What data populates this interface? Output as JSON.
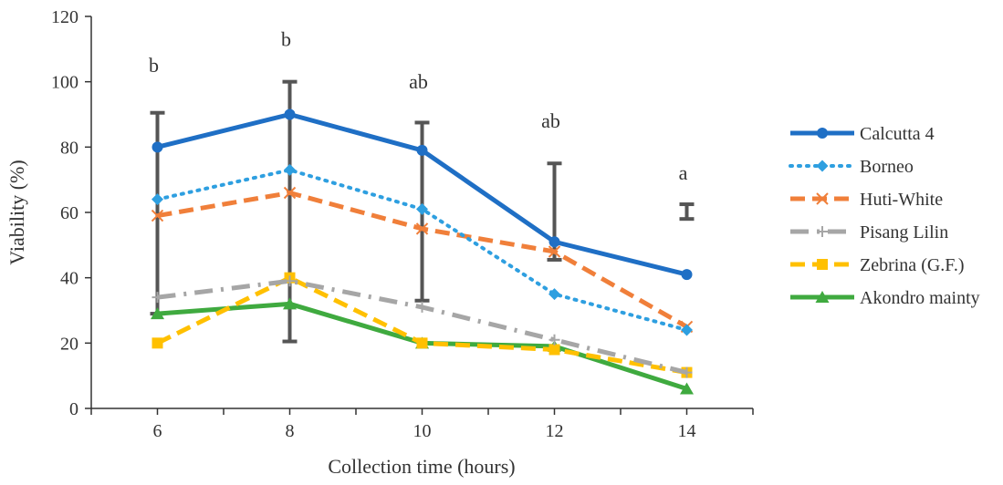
{
  "chart_data": {
    "type": "line",
    "title": "",
    "xlabel": "Collection time (hours)",
    "ylabel": "Viability (%)",
    "x": [
      6,
      8,
      10,
      12,
      14
    ],
    "x_ticks": [
      "6",
      "8",
      "10",
      "12",
      "14"
    ],
    "xlim": [
      5,
      15
    ],
    "ylim": [
      0,
      120
    ],
    "y_ticks": [
      "0",
      "20",
      "40",
      "60",
      "80",
      "100",
      "120"
    ],
    "grid": false,
    "legend_position": "right",
    "series": [
      {
        "name": "Calcutta 4",
        "values": [
          80,
          90,
          79,
          51,
          41
        ],
        "color": "#1F6FC5",
        "dash": "solid",
        "marker": "circle"
      },
      {
        "name": "Borneo",
        "values": [
          64,
          73,
          61,
          35,
          24
        ],
        "color": "#2E9FE0",
        "dash": "dot",
        "marker": "diamond"
      },
      {
        "name": "Huti-White",
        "values": [
          59,
          66,
          55,
          48,
          25
        ],
        "color": "#F07F3A",
        "dash": "dash",
        "marker": "x"
      },
      {
        "name": "Pisang Lilin",
        "values": [
          34,
          39,
          31,
          21,
          11
        ],
        "color": "#A6A6A6",
        "dash": "dashdot",
        "marker": "plus"
      },
      {
        "name": "Zebrina (G.F.)",
        "values": [
          20,
          40,
          20,
          18,
          11
        ],
        "color": "#FFC000",
        "dash": "dash",
        "marker": "square"
      },
      {
        "name": "Akondro mainty",
        "values": [
          29,
          32,
          20,
          19,
          6
        ],
        "color": "#3FAA3F",
        "dash": "solid",
        "marker": "triangle"
      }
    ],
    "error_bars": [
      {
        "x": 6,
        "low": 29,
        "high": 90.5
      },
      {
        "x": 8,
        "low": 20.5,
        "high": 100
      },
      {
        "x": 10,
        "low": 33,
        "high": 87.5
      },
      {
        "x": 12,
        "low": 45.5,
        "high": 75
      },
      {
        "x": 14,
        "low": 58,
        "high": 62.5
      }
    ],
    "error_bar_color": "#555555",
    "annotations": [
      {
        "x": 6,
        "y": 103,
        "text": "b"
      },
      {
        "x": 8,
        "y": 111,
        "text": "b"
      },
      {
        "x": 10,
        "y": 98,
        "text": "ab"
      },
      {
        "x": 12,
        "y": 86,
        "text": "ab"
      },
      {
        "x": 14,
        "y": 70,
        "text": "a"
      }
    ]
  }
}
